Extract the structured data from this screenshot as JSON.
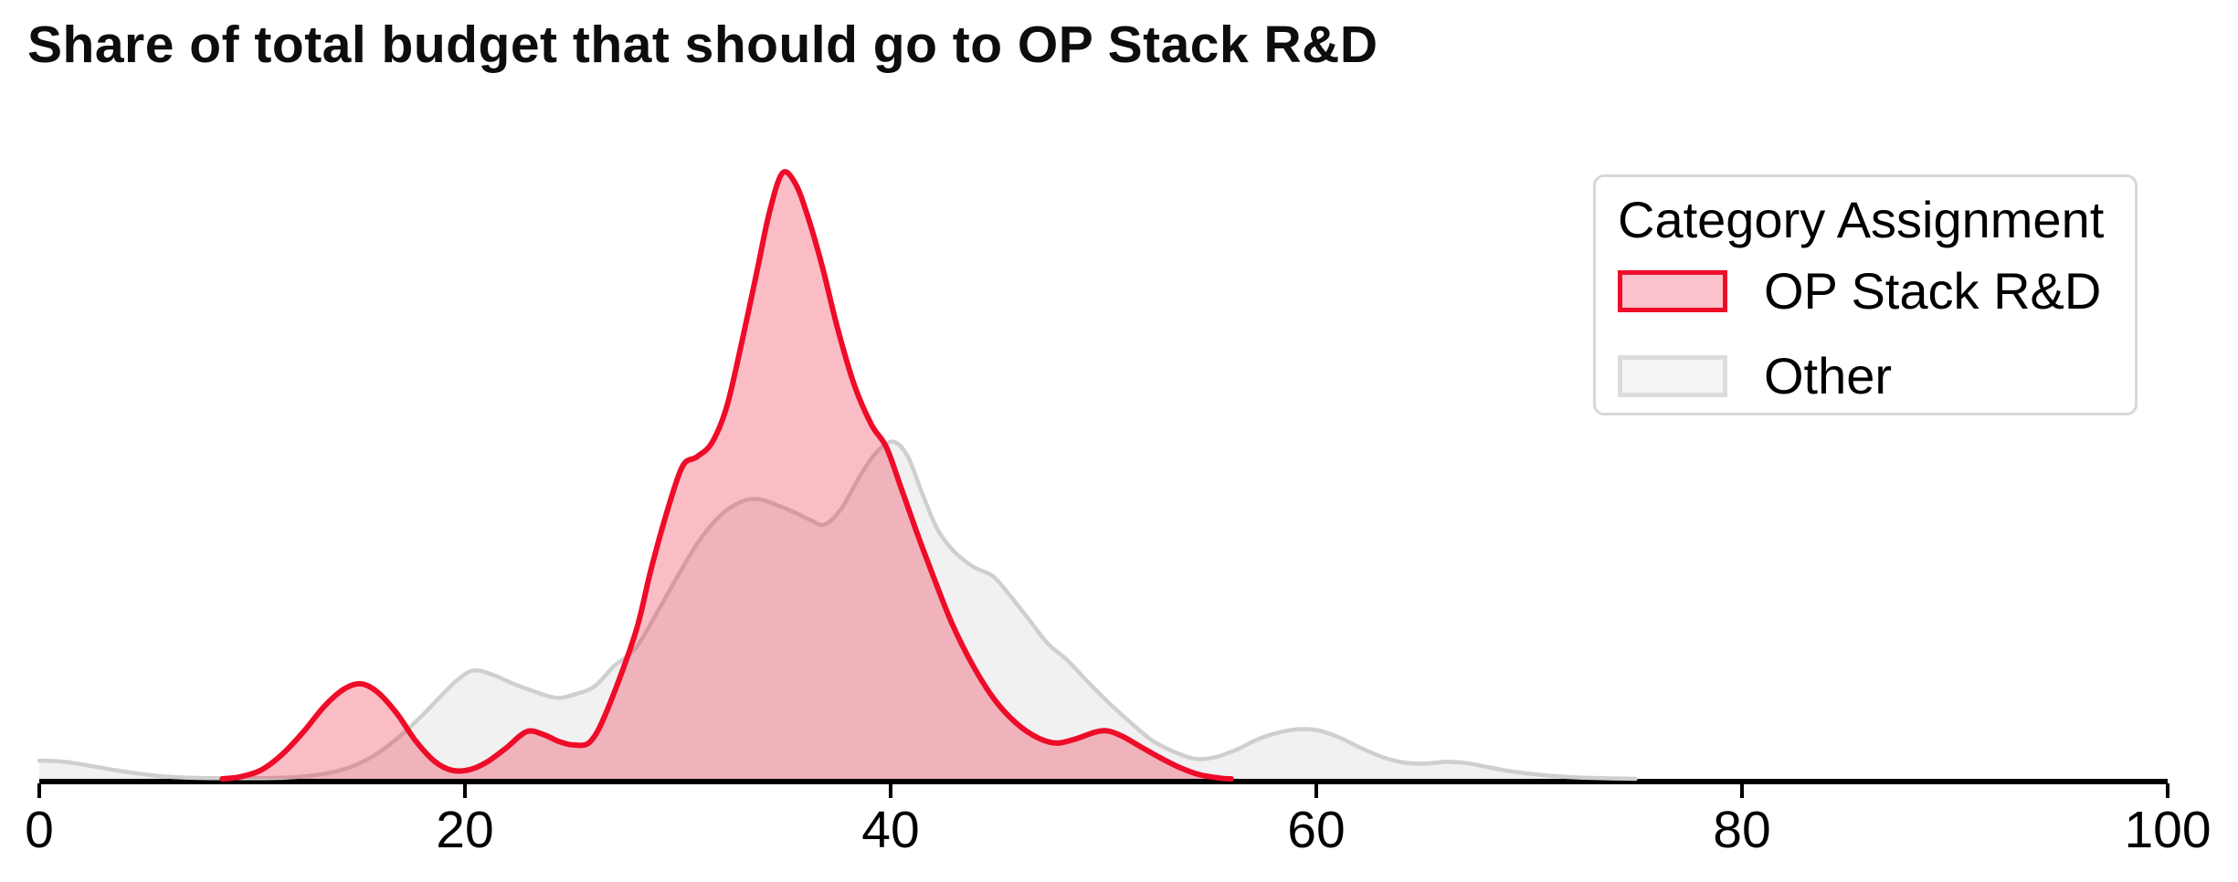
{
  "title": {
    "text": "Share of total budget that should go to OP Stack R&D"
  },
  "legend": {
    "title": "Category Assignment",
    "border_color": "#d8d8d8",
    "items": [
      {
        "label": "OP Stack R&D",
        "swatch_fill": "#fbc2cb",
        "swatch_border": "#ee0c29"
      },
      {
        "label": "Other",
        "swatch_fill": "#f5f5f5",
        "swatch_border": "#dcdcdc"
      }
    ]
  },
  "chart_data": {
    "type": "area",
    "subtype": "kde-density",
    "title": "Share of total budget that should go to OP Stack R&D",
    "xlabel": "",
    "ylabel": "",
    "xlim": [
      0,
      100
    ],
    "x_ticks": [
      0,
      20,
      40,
      60,
      80,
      100
    ],
    "grid": false,
    "legend_position": "upper-right",
    "legend_title": "Category Assignment",
    "axis_color": "#000000",
    "y_units": "density, normalized so the OP Stack R&D peak = 1.0",
    "series": [
      {
        "name": "Other",
        "line_color": "#cfcfcf",
        "fill_color": "rgba(170,170,170,0.16)",
        "points": [
          [
            0,
            0.03
          ],
          [
            0.9,
            0.029
          ],
          [
            1.8,
            0.025
          ],
          [
            2.8,
            0.019
          ],
          [
            3.8,
            0.013
          ],
          [
            4.8,
            0.008
          ],
          [
            5.8,
            0.004
          ],
          [
            7,
            0.002
          ],
          [
            8.5,
            0.001
          ],
          [
            10,
            0.001
          ],
          [
            11.5,
            0.002
          ],
          [
            12.7,
            0.005
          ],
          [
            13.8,
            0.011
          ],
          [
            14.8,
            0.022
          ],
          [
            15.8,
            0.04
          ],
          [
            16.8,
            0.066
          ],
          [
            17.8,
            0.098
          ],
          [
            18.8,
            0.134
          ],
          [
            19.6,
            0.162
          ],
          [
            20.4,
            0.179
          ],
          [
            21.3,
            0.172
          ],
          [
            22.2,
            0.158
          ],
          [
            23.2,
            0.145
          ],
          [
            24.3,
            0.134
          ],
          [
            25.2,
            0.14
          ],
          [
            26.1,
            0.153
          ],
          [
            27,
            0.186
          ],
          [
            28,
            0.215
          ],
          [
            29,
            0.273
          ],
          [
            30,
            0.335
          ],
          [
            31,
            0.393
          ],
          [
            32,
            0.435
          ],
          [
            33,
            0.458
          ],
          [
            33.8,
            0.462
          ],
          [
            34.6,
            0.453
          ],
          [
            35.5,
            0.44
          ],
          [
            36.2,
            0.428
          ],
          [
            36.9,
            0.42
          ],
          [
            37.7,
            0.447
          ],
          [
            38.5,
            0.497
          ],
          [
            39.3,
            0.538
          ],
          [
            40.1,
            0.557
          ],
          [
            40.8,
            0.533
          ],
          [
            41.5,
            0.47
          ],
          [
            42.2,
            0.412
          ],
          [
            43,
            0.375
          ],
          [
            43.9,
            0.35
          ],
          [
            44.8,
            0.335
          ],
          [
            45.6,
            0.303
          ],
          [
            46.5,
            0.263
          ],
          [
            47.4,
            0.223
          ],
          [
            48.3,
            0.196
          ],
          [
            49.3,
            0.159
          ],
          [
            50.3,
            0.124
          ],
          [
            51.3,
            0.092
          ],
          [
            52.3,
            0.063
          ],
          [
            53.3,
            0.045
          ],
          [
            54.3,
            0.033
          ],
          [
            55.3,
            0.036
          ],
          [
            56.3,
            0.049
          ],
          [
            57.3,
            0.066
          ],
          [
            58.3,
            0.077
          ],
          [
            59.2,
            0.082
          ],
          [
            60.1,
            0.08
          ],
          [
            61.1,
            0.068
          ],
          [
            62.1,
            0.051
          ],
          [
            63.1,
            0.036
          ],
          [
            64.1,
            0.027
          ],
          [
            65.1,
            0.025
          ],
          [
            66.1,
            0.028
          ],
          [
            67.1,
            0.026
          ],
          [
            68.1,
            0.019
          ],
          [
            69.2,
            0.012
          ],
          [
            70.4,
            0.007
          ],
          [
            71.8,
            0.003
          ],
          [
            73.4,
            0.001
          ],
          [
            75,
            0
          ]
        ]
      },
      {
        "name": "OP Stack R&D",
        "line_color": "#ee0c29",
        "fill_color": "rgba(237,10,40,0.27)",
        "points": [
          [
            8.6,
            0
          ],
          [
            9.4,
            0.003
          ],
          [
            10.4,
            0.014
          ],
          [
            11.4,
            0.04
          ],
          [
            12.4,
            0.077
          ],
          [
            13.4,
            0.12
          ],
          [
            14.3,
            0.148
          ],
          [
            15.1,
            0.157
          ],
          [
            15.9,
            0.143
          ],
          [
            16.8,
            0.108
          ],
          [
            17.7,
            0.062
          ],
          [
            18.6,
            0.028
          ],
          [
            19.4,
            0.014
          ],
          [
            20.2,
            0.015
          ],
          [
            21,
            0.027
          ],
          [
            21.9,
            0.05
          ],
          [
            22.9,
            0.078
          ],
          [
            23.7,
            0.073
          ],
          [
            24.4,
            0.062
          ],
          [
            25.1,
            0.056
          ],
          [
            25.9,
            0.062
          ],
          [
            26.7,
            0.115
          ],
          [
            28,
            0.24
          ],
          [
            28.7,
            0.34
          ],
          [
            29.4,
            0.43
          ],
          [
            30.2,
            0.515
          ],
          [
            30.9,
            0.532
          ],
          [
            31.6,
            0.555
          ],
          [
            32.3,
            0.615
          ],
          [
            33,
            0.72
          ],
          [
            33.7,
            0.835
          ],
          [
            34.3,
            0.935
          ],
          [
            34.9,
            1.0
          ],
          [
            35.5,
            0.985
          ],
          [
            36.1,
            0.93
          ],
          [
            36.8,
            0.845
          ],
          [
            37.5,
            0.745
          ],
          [
            38.3,
            0.65
          ],
          [
            39.1,
            0.585
          ],
          [
            39.8,
            0.548
          ],
          [
            40.5,
            0.48
          ],
          [
            41.2,
            0.41
          ],
          [
            42,
            0.335
          ],
          [
            42.9,
            0.255
          ],
          [
            43.9,
            0.185
          ],
          [
            44.9,
            0.13
          ],
          [
            45.9,
            0.092
          ],
          [
            46.9,
            0.068
          ],
          [
            47.8,
            0.059
          ],
          [
            48.7,
            0.066
          ],
          [
            49.6,
            0.077
          ],
          [
            50.2,
            0.079
          ],
          [
            50.9,
            0.07
          ],
          [
            51.7,
            0.054
          ],
          [
            52.6,
            0.036
          ],
          [
            53.5,
            0.02
          ],
          [
            54.5,
            0.007
          ],
          [
            55.5,
            0.001
          ],
          [
            56,
            0
          ]
        ]
      }
    ]
  }
}
